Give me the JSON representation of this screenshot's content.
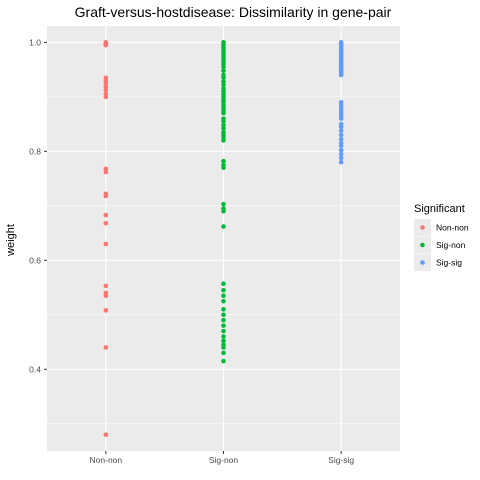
{
  "chart_data": {
    "type": "scatter",
    "title": "Graft-versus-hostdisease: Dissimilarity in gene-pair",
    "xlabel": "",
    "ylabel": "weight",
    "categories": [
      "Non-non",
      "Sig-non",
      "Sig-sig"
    ],
    "yticks": [
      0.4,
      0.6,
      0.8,
      1.0
    ],
    "ytick_labels": [
      "0.4",
      "0.6",
      "0.8",
      "1.0"
    ],
    "ylim": [
      0.25,
      1.03
    ],
    "grid": true,
    "legend": {
      "title": "Significant",
      "placement": "right",
      "entries": [
        "Non-non",
        "Sig-non",
        "Sig-sig"
      ]
    },
    "colors": {
      "Non-non": "#F8766D",
      "Sig-non": "#00BA38",
      "Sig-sig": "#619CFF",
      "panel": "#EBEBEB",
      "grid": "#FFFFFF"
    },
    "series": [
      {
        "name": "Non-non",
        "values": [
          1.0,
          0.999,
          0.998,
          0.997,
          0.995,
          0.935,
          0.93,
          0.925,
          0.918,
          0.912,
          0.905,
          0.9,
          0.768,
          0.762,
          0.722,
          0.718,
          0.683,
          0.668,
          0.63,
          0.553,
          0.54,
          0.535,
          0.508,
          0.44,
          0.28
        ]
      },
      {
        "name": "Sig-non",
        "values": [
          1.0,
          0.995,
          0.99,
          0.985,
          0.98,
          0.975,
          0.97,
          0.965,
          0.96,
          0.955,
          0.948,
          0.94,
          0.935,
          0.928,
          0.922,
          0.915,
          0.91,
          0.905,
          0.9,
          0.895,
          0.89,
          0.885,
          0.88,
          0.875,
          0.87,
          0.86,
          0.855,
          0.848,
          0.842,
          0.835,
          0.83,
          0.825,
          0.82,
          0.782,
          0.775,
          0.77,
          0.703,
          0.695,
          0.69,
          0.662,
          0.557,
          0.545,
          0.535,
          0.525,
          0.51,
          0.5,
          0.49,
          0.48,
          0.47,
          0.46,
          0.452,
          0.445,
          0.44,
          0.43,
          0.415
        ]
      },
      {
        "name": "Sig-sig",
        "values": [
          1.0,
          0.997,
          0.994,
          0.991,
          0.988,
          0.985,
          0.982,
          0.979,
          0.976,
          0.973,
          0.97,
          0.967,
          0.964,
          0.961,
          0.958,
          0.955,
          0.952,
          0.949,
          0.946,
          0.943,
          0.94,
          0.89,
          0.885,
          0.88,
          0.875,
          0.87,
          0.865,
          0.86,
          0.85,
          0.845,
          0.838,
          0.83,
          0.822,
          0.815,
          0.81,
          0.802,
          0.795,
          0.788,
          0.78
        ]
      }
    ]
  }
}
